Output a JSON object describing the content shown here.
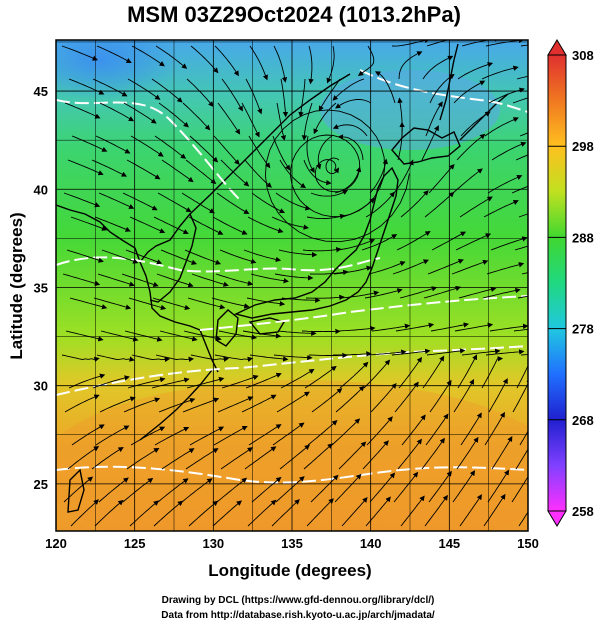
{
  "title": "MSM 03Z29Oct2024 (1013.2hPa)",
  "x_axis": {
    "label": "Longitude (degrees)",
    "ticks": [
      120,
      125,
      130,
      135,
      140,
      145,
      150
    ],
    "range": [
      120,
      150
    ]
  },
  "y_axis": {
    "label": "Latitude  (degrees)",
    "ticks": [
      25,
      30,
      35,
      40,
      45
    ],
    "range": [
      22.6,
      47.6
    ]
  },
  "colorbar": {
    "ticks": [
      258,
      268,
      278,
      288,
      298,
      308
    ],
    "range": [
      258,
      308
    ],
    "colors": [
      "#ff30ff",
      "#2020d0",
      "#2080ff",
      "#20c8e0",
      "#20d860",
      "#80e020",
      "#e8e820",
      "#ffb020",
      "#f07020",
      "#e03030"
    ]
  },
  "credits": [
    "Drawing by DCL (https://www.gfd-dennou.org/library/dcl/)",
    "Data from http://database.rish.kyoto-u.ac.jp/arch/jmadata/"
  ],
  "map": {
    "colors": {
      "cold": "#4aa8e8",
      "cool": "#30c8a0",
      "mild": "#40d040",
      "warm": "#a0e020",
      "hot": "#e8a020",
      "coast": "#000000",
      "contour": "#ffffff",
      "stream": "#000000"
    }
  }
}
